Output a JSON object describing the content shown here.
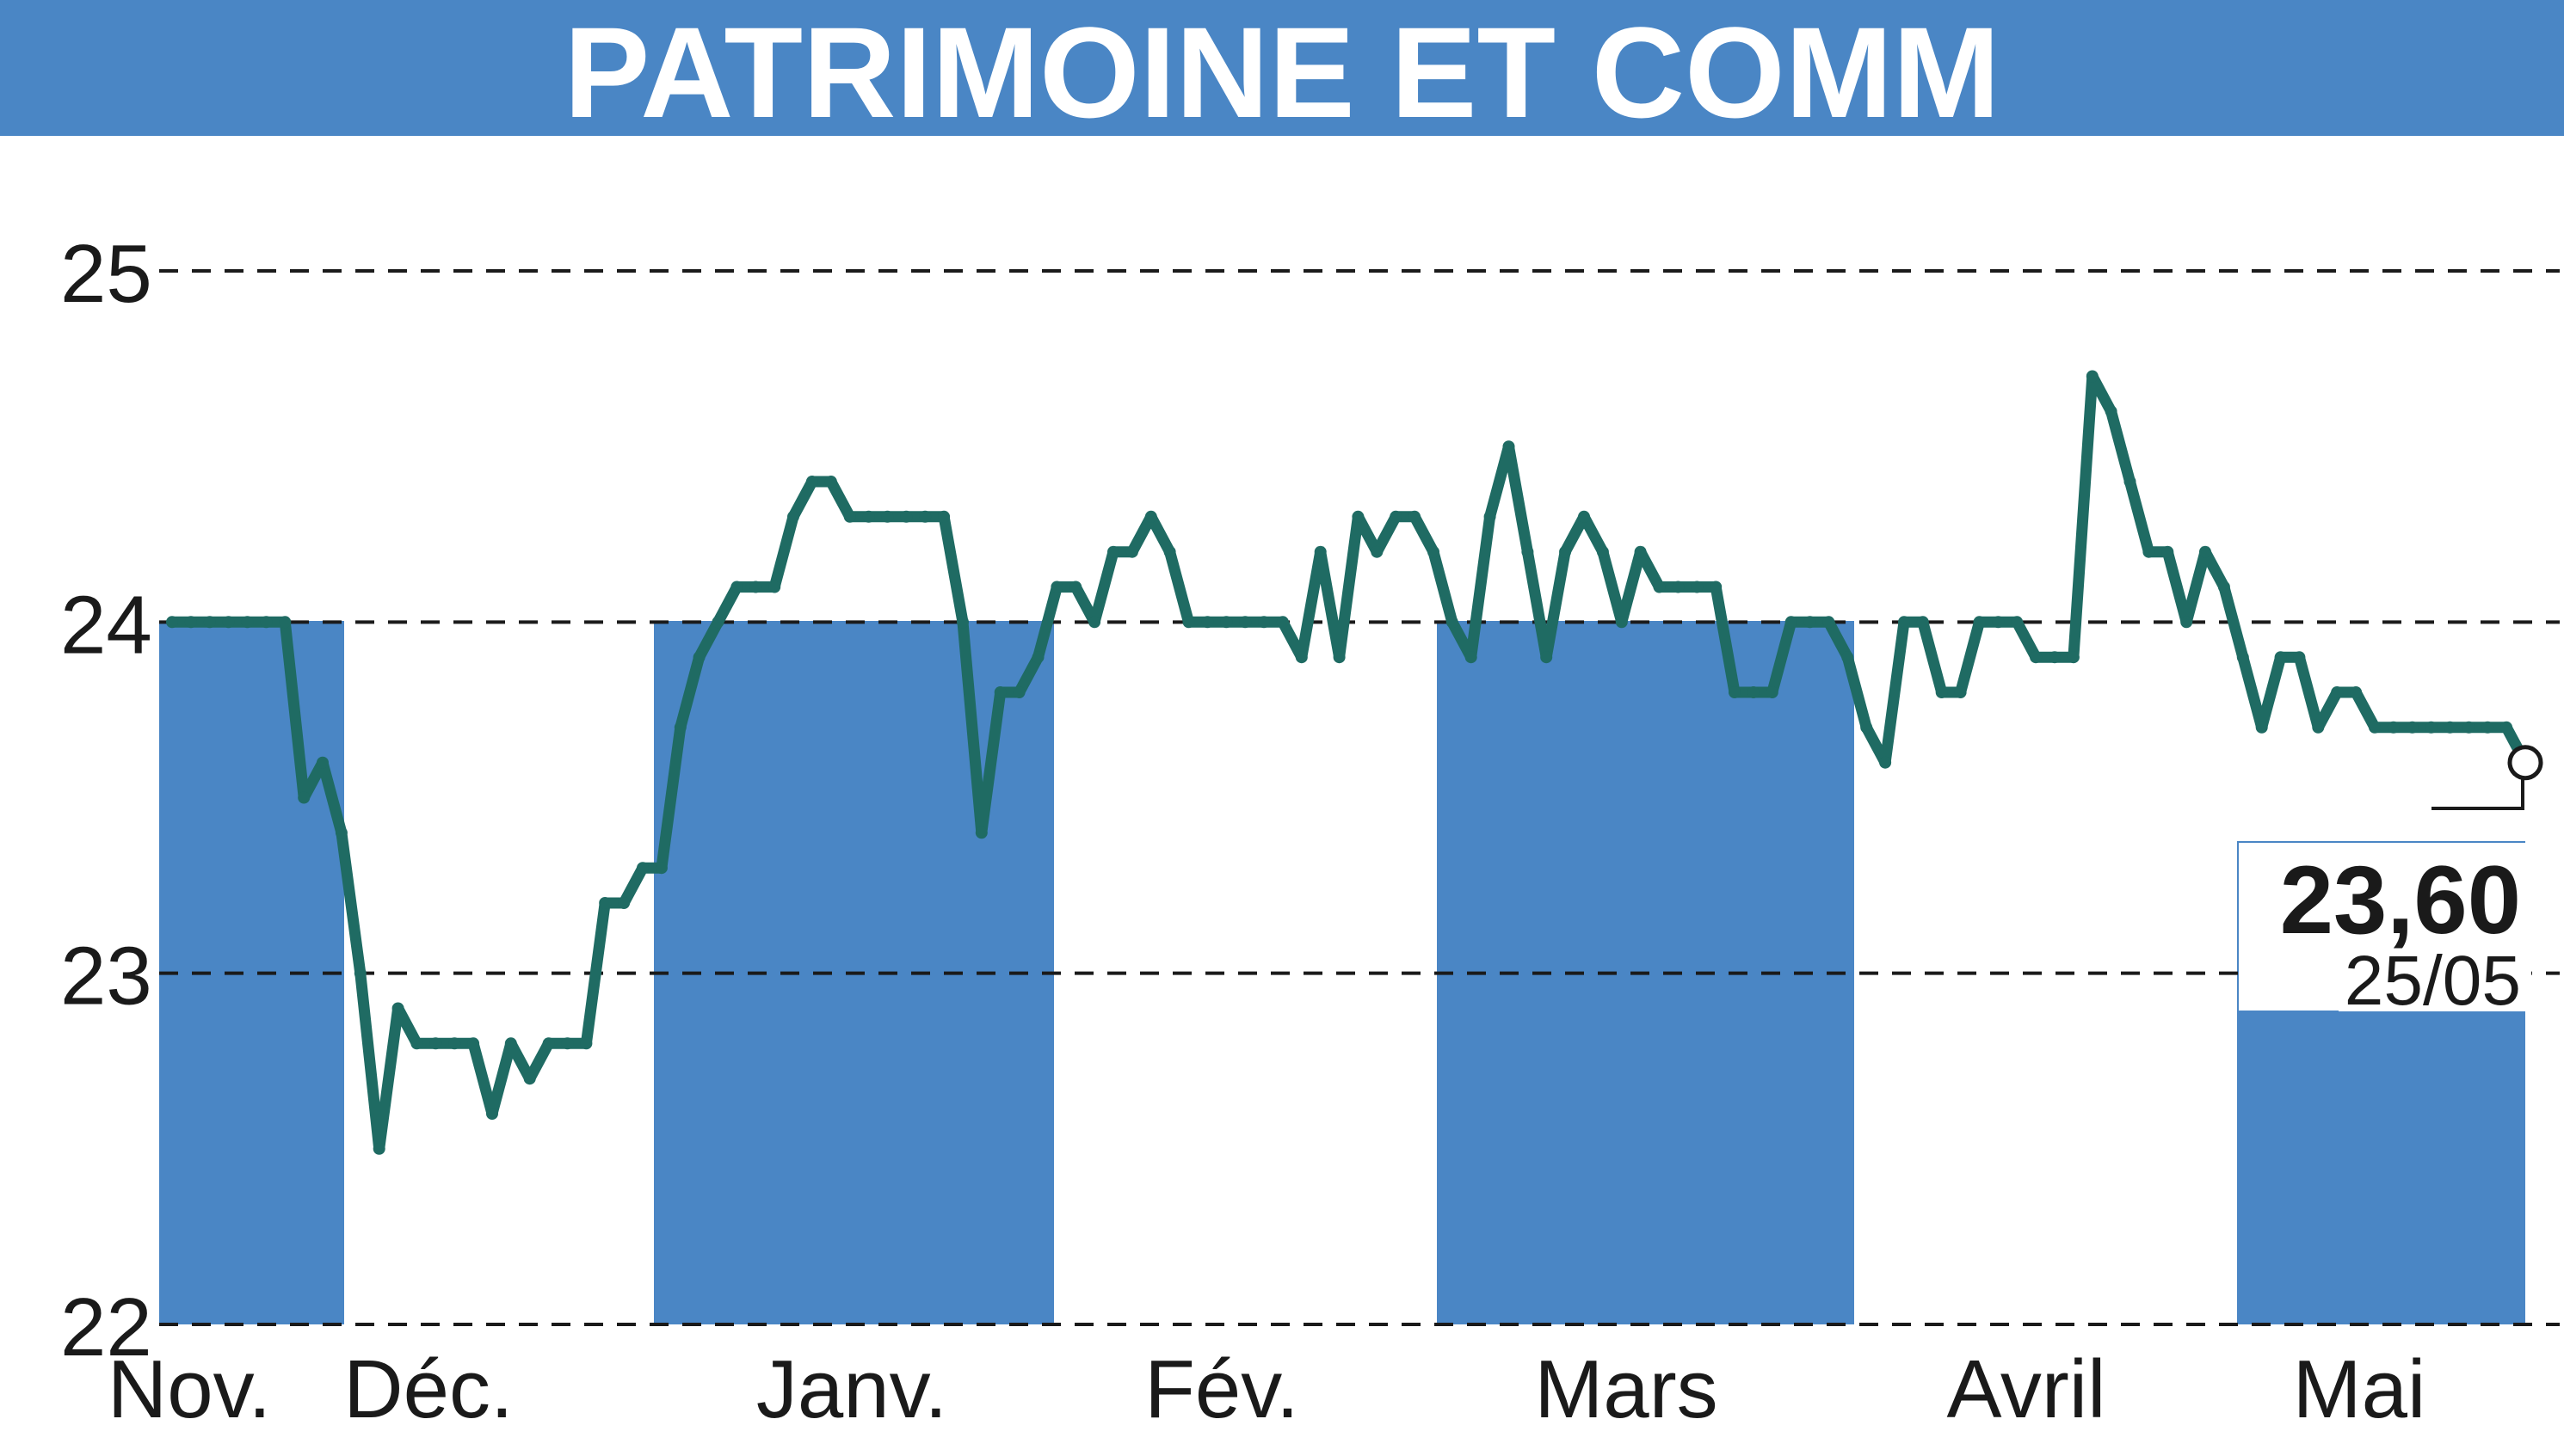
{
  "header": {
    "title": "PATRIMOINE ET COMM"
  },
  "colors": {
    "band": "#4a86c5",
    "line": "#1f6b63",
    "grid": "#1a1a1a",
    "header_bg": "#4a86c5",
    "marker": "#ffffff"
  },
  "chart_data": {
    "type": "line",
    "title": "PATRIMOINE ET COMM",
    "xlabel": "",
    "ylabel": "",
    "ylim": [
      22,
      25
    ],
    "yticks": [
      22,
      23,
      24,
      25
    ],
    "grid": "horizontal-dashed",
    "months": [
      "Nov.",
      "Déc.",
      "Janv.",
      "Fév.",
      "Mars",
      "Avril",
      "Mai"
    ],
    "shaded_months": [
      0,
      2,
      4,
      6
    ],
    "series": [
      {
        "values": [
          24.0,
          24.0,
          24.0,
          24.0,
          24.0,
          24.0,
          24.0,
          23.5,
          23.6,
          23.4,
          23.0,
          22.5,
          22.9,
          22.8,
          22.8,
          22.8,
          22.8,
          22.6,
          22.8,
          22.7,
          22.8,
          22.8,
          22.8,
          23.2,
          23.2,
          23.3,
          23.3,
          23.7,
          23.9,
          24.0,
          24.1,
          24.1,
          24.1,
          24.3,
          24.4,
          24.4,
          24.3,
          24.3,
          24.3,
          24.3,
          24.3,
          24.3,
          24.0,
          23.4,
          23.8,
          23.8,
          23.9,
          24.1,
          24.1,
          24.0,
          24.2,
          24.2,
          24.3,
          24.2,
          24.0,
          24.0,
          24.0,
          24.0,
          24.0,
          24.0,
          23.9,
          24.2,
          23.9,
          24.3,
          24.2,
          24.3,
          24.3,
          24.2,
          24.0,
          23.9,
          24.3,
          24.5,
          24.2,
          23.9,
          24.2,
          24.3,
          24.2,
          24.0,
          24.2,
          24.1,
          24.1,
          24.1,
          24.1,
          23.8,
          23.8,
          23.8,
          24.0,
          24.0,
          24.0,
          23.9,
          23.7,
          23.6,
          24.0,
          24.0,
          23.8,
          23.8,
          24.0,
          24.0,
          24.0,
          23.9,
          23.9,
          23.9,
          24.7,
          24.6,
          24.4,
          24.2,
          24.2,
          24.0,
          24.2,
          24.1,
          23.9,
          23.7,
          23.9,
          23.9,
          23.7,
          23.8,
          23.8,
          23.7,
          23.7,
          23.7,
          23.7,
          23.7,
          23.7,
          23.7,
          23.7,
          23.6
        ]
      }
    ],
    "last_value": "23,60",
    "last_date": "25/05"
  }
}
